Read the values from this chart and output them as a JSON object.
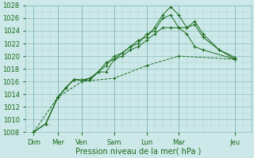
{
  "xlabel": "Pression niveau de la mer( hPa )",
  "bg_color": "#cce8e8",
  "grid_major_color": "#8bbcbc",
  "grid_minor_color": "#aad4d4",
  "line_color": "#1a6b1a",
  "ylim": [
    1008,
    1028
  ],
  "ytick_step": 2,
  "xlim": [
    0,
    14
  ],
  "day_tick_positions": [
    0.5,
    2.0,
    3.5,
    5.5,
    7.5,
    9.5,
    13.0
  ],
  "day_tick_labels": [
    "Dim",
    "Mer",
    "Ven",
    "Sam",
    "Lun",
    "Mar",
    "Jeu"
  ],
  "vline_positions": [
    0.5,
    2.0,
    3.5,
    5.5,
    7.5,
    9.5,
    13.0
  ],
  "series": [
    {
      "x": [
        0.5,
        1.25,
        2.0,
        2.5,
        3.0,
        3.5,
        4.0,
        4.5,
        5.0,
        5.5,
        6.0,
        6.5,
        7.0,
        7.5,
        8.0,
        8.5,
        9.0,
        9.5,
        10.0,
        10.5,
        11.0,
        12.0,
        13.0
      ],
      "y": [
        1008.0,
        1009.3,
        1013.5,
        1015.0,
        1016.3,
        1016.2,
        1016.2,
        1017.5,
        1017.5,
        1019.5,
        1020.5,
        1021.5,
        1022.5,
        1023.0,
        1024.5,
        1026.5,
        1027.8,
        1026.5,
        1024.5,
        1025.5,
        1023.5,
        1021.0,
        1019.5
      ],
      "linestyle": "-"
    },
    {
      "x": [
        0.5,
        1.25,
        2.0,
        2.5,
        3.0,
        3.5,
        4.0,
        4.5,
        5.0,
        5.5,
        6.0,
        6.5,
        7.0,
        7.5,
        8.0,
        8.5,
        9.0,
        9.5,
        10.0,
        10.5,
        11.0,
        12.0,
        13.0
      ],
      "y": [
        1008.0,
        1009.3,
        1013.5,
        1015.0,
        1016.3,
        1016.2,
        1016.5,
        1017.5,
        1018.5,
        1020.0,
        1020.5,
        1021.5,
        1022.0,
        1023.5,
        1024.0,
        1026.0,
        1026.5,
        1024.5,
        1024.5,
        1025.0,
        1023.0,
        1021.0,
        1019.8
      ],
      "linestyle": "-"
    },
    {
      "x": [
        0.5,
        1.25,
        2.0,
        2.5,
        3.0,
        3.5,
        4.0,
        4.5,
        5.0,
        5.5,
        6.0,
        6.5,
        7.0,
        7.5,
        8.0,
        8.5,
        9.0,
        9.5,
        10.0,
        10.5,
        11.0,
        13.0
      ],
      "y": [
        1008.0,
        1009.3,
        1013.5,
        1015.0,
        1016.3,
        1016.2,
        1016.5,
        1017.5,
        1019.0,
        1019.5,
        1020.0,
        1021.0,
        1021.5,
        1022.5,
        1023.5,
        1024.5,
        1024.5,
        1024.5,
        1023.5,
        1021.5,
        1021.0,
        1019.5
      ],
      "linestyle": "-"
    },
    {
      "x": [
        0.5,
        2.0,
        3.5,
        5.5,
        7.5,
        9.5,
        13.0
      ],
      "y": [
        1008.0,
        1013.5,
        1016.0,
        1016.5,
        1018.5,
        1020.0,
        1019.5
      ],
      "linestyle": "--"
    }
  ]
}
